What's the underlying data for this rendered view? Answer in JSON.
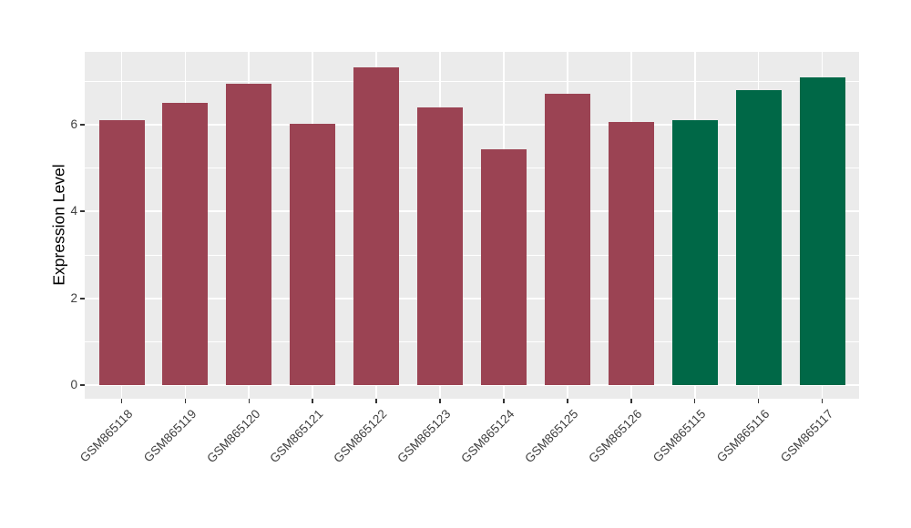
{
  "chart_data": {
    "type": "bar",
    "title": "",
    "xlabel": "",
    "ylabel": "Expression Level",
    "categories": [
      "GSM865118",
      "GSM865119",
      "GSM865120",
      "GSM865121",
      "GSM865122",
      "GSM865123",
      "GSM865124",
      "GSM865125",
      "GSM865126",
      "GSM865115",
      "GSM865116",
      "GSM865117"
    ],
    "values": [
      6.09,
      6.49,
      6.93,
      6.01,
      7.31,
      6.39,
      5.42,
      6.7,
      6.05,
      6.09,
      6.78,
      7.09
    ],
    "bar_colors": [
      "#9B4353",
      "#9B4353",
      "#9B4353",
      "#9B4353",
      "#9B4353",
      "#9B4353",
      "#9B4353",
      "#9B4353",
      "#9B4353",
      "#006847",
      "#006847",
      "#006847"
    ],
    "yticks": [
      0,
      2,
      4,
      6
    ],
    "minor_gridlines": [
      1,
      3,
      5,
      7
    ],
    "ylim": [
      -0.31,
      7.67
    ],
    "grid": true,
    "legend": "none",
    "style": {
      "panel_background": "#EBEBEB",
      "gridline_color": "#FFFFFF",
      "tick_color": "#333333",
      "tick_label_color": "#404040",
      "axis_title_color": "#000000",
      "red_group_color": "#9B4353",
      "green_group_color": "#006847"
    }
  }
}
